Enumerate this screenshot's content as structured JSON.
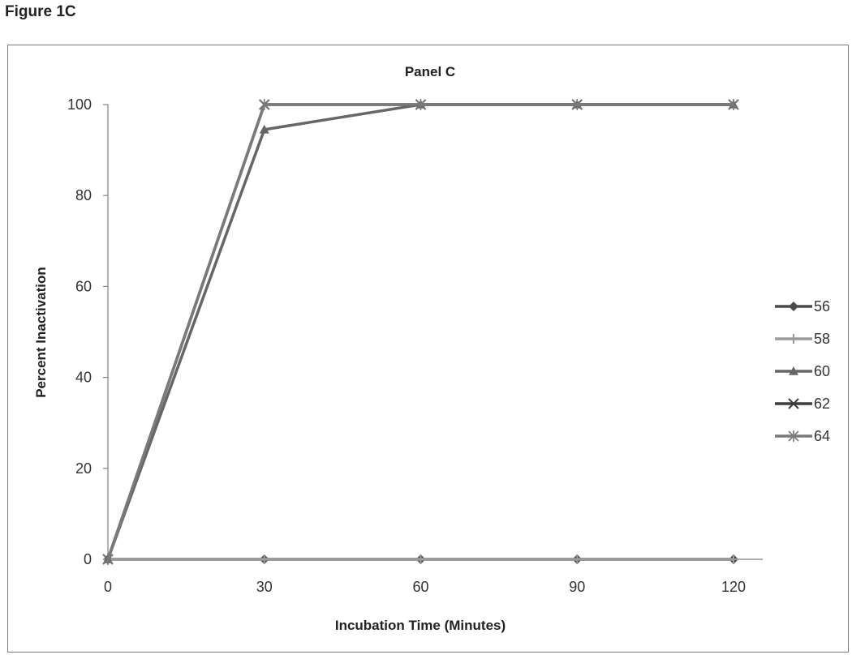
{
  "figure_label": "Figure 1C",
  "chart_data": {
    "type": "line",
    "title": "Panel C",
    "xlabel": "Incubation Time (Minutes)",
    "ylabel": "Percent Inactivation",
    "x": [
      0,
      30,
      60,
      90,
      120
    ],
    "x_ticks": [
      "0",
      "30",
      "60",
      "90",
      "120"
    ],
    "y_ticks": [
      "0",
      "20",
      "40",
      "60",
      "80",
      "100"
    ],
    "ylim": [
      0,
      100
    ],
    "grid": false,
    "legend_position": "right",
    "series": [
      {
        "name": "56",
        "marker": "diamond",
        "color": "#4a4a4a",
        "values": [
          0,
          0,
          0,
          0,
          0
        ]
      },
      {
        "name": "58",
        "marker": "plus",
        "color": "#9a9a9a",
        "values": [
          0,
          0,
          0,
          0,
          0
        ]
      },
      {
        "name": "60",
        "marker": "triangle",
        "color": "#666666",
        "values": [
          0,
          94.5,
          100,
          100,
          100
        ]
      },
      {
        "name": "62",
        "marker": "x",
        "color": "#3c3c3c",
        "values": [
          0,
          100,
          100,
          100,
          100
        ]
      },
      {
        "name": "64",
        "marker": "star",
        "color": "#7a7a7a",
        "values": [
          0,
          100,
          100,
          100,
          100
        ]
      }
    ]
  }
}
